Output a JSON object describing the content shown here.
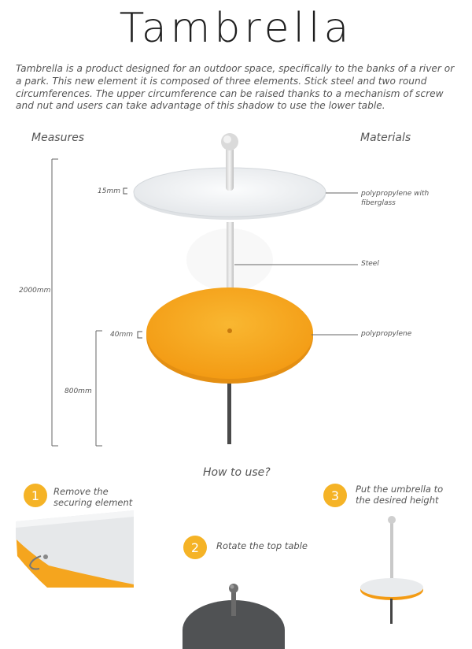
{
  "title": "Tambrella",
  "intro": "Tambrella is a product designed for an outdoor space, specifically to the banks of a river or a park. This new element it is composed of three elements. Stick steel and two round circumferences. The upper circumference can be raised thanks to a mechanism of screw and nut and users can take advantage of this shadow to use the lower table.",
  "measures": {
    "heading": "Measures",
    "top_thickness": "15mm",
    "total_height": "2000mm",
    "table_thickness": "40mm",
    "table_height": "800mm"
  },
  "materials": {
    "heading": "Materials",
    "top": "polypropylene with fiberglass",
    "stick": "Steel",
    "table": "polypropylene"
  },
  "how_to_use": {
    "heading": "How to use?",
    "steps": [
      {
        "number": "1",
        "text": "Remove the securing element"
      },
      {
        "number": "2",
        "text": "Rotate the top table"
      },
      {
        "number": "3",
        "text": "Put the umbrella to the desired height"
      }
    ]
  },
  "colors": {
    "accent": "#f5b326",
    "table": "#f6a31c",
    "top_disc": "#eef0f2",
    "pole_dark": "#4a4a4a"
  }
}
